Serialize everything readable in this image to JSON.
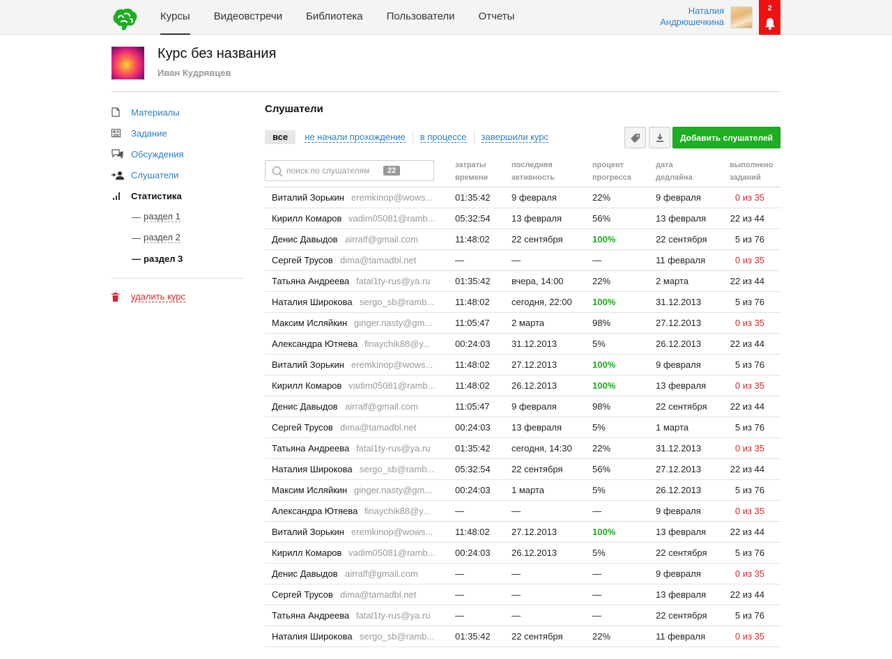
{
  "nav": {
    "items": [
      {
        "label": "Курсы",
        "active": true
      },
      {
        "label": "Видеовстречи",
        "active": false
      },
      {
        "label": "Библиотека",
        "active": false
      },
      {
        "label": "Пользователи",
        "active": false
      },
      {
        "label": "Отчеты",
        "active": false
      }
    ]
  },
  "user": {
    "first_name": "Наталия",
    "last_name": "Андрюшечкина",
    "notifications": "2"
  },
  "course": {
    "title": "Курс без названия",
    "author": "Иван Кудрявцев"
  },
  "sidebar": {
    "items": [
      {
        "label": "Материалы",
        "icon": "document-icon"
      },
      {
        "label": "Задание",
        "icon": "task-icon"
      },
      {
        "label": "Обсуждения",
        "icon": "discussion-icon"
      },
      {
        "label": "Слушатели",
        "icon": "listeners-icon"
      },
      {
        "label": "Статистика",
        "icon": "stats-icon",
        "active": true
      }
    ],
    "sub_items": [
      {
        "label": "раздел 1"
      },
      {
        "label": "раздел 2"
      },
      {
        "label": "раздел 3",
        "active": true
      }
    ],
    "delete_label": "удалить курс"
  },
  "main": {
    "title": "Слушатели",
    "filters": [
      {
        "label": "все",
        "active": true
      },
      {
        "label": "не начали прохождение"
      },
      {
        "label": "в процессе"
      },
      {
        "label": "завершили курс"
      }
    ],
    "add_button": "Добавить слушателей",
    "search": {
      "placeholder": "поиск по слушателям",
      "count": "22"
    },
    "columns": {
      "time": [
        "затраты",
        "времени"
      ],
      "activity": [
        "последняя",
        "активность"
      ],
      "progress": [
        "процент",
        "прогресса"
      ],
      "deadline": [
        "дата",
        "дедлайна"
      ],
      "done": [
        "выполнено",
        "заданий"
      ]
    }
  },
  "rows": [
    {
      "name": "Виталий Зорькин",
      "email": "eremkinop@wows...",
      "time": "01:35:42",
      "activity": "9 февраля",
      "progress": "22%",
      "deadline": "9 февраля",
      "done": "0 из 35"
    },
    {
      "name": "Кирилл Комаров",
      "email": "vadim05081@ramb...",
      "time": "05:32:54",
      "activity": "13 февраля",
      "progress": "56%",
      "deadline": "13 февраля",
      "done": "22 из 44"
    },
    {
      "name": "Денис Давыдов",
      "email": "airralf@gmail.com",
      "time": "11:48:02",
      "activity": "22 сентября",
      "progress": "100%",
      "deadline": "22 сентября",
      "done": "5 из 76"
    },
    {
      "name": "Сергей Трусов",
      "email": "dima@tamadbl.net",
      "time": "—",
      "activity": "—",
      "progress": "—",
      "deadline": "11 февраля",
      "done": "0 из 35"
    },
    {
      "name": "Татьяна Андреева",
      "email": "fatal1ty-rus@ya.ru",
      "time": "01:35:42",
      "activity": "вчера, 14:00",
      "progress": "22%",
      "deadline": "2 марта",
      "done": "22 из 44"
    },
    {
      "name": "Наталия Широкова",
      "email": "sergo_sb@ramb...",
      "time": "11:48:02",
      "activity": "сегодня, 22:00",
      "progress": "100%",
      "deadline": "31.12.2013",
      "done": "5 из 76"
    },
    {
      "name": "Максим Исляйкин",
      "email": "ginger.nasty@gm...",
      "time": "11:05:47",
      "activity": "2 марта",
      "progress": "98%",
      "deadline": "27.12.2013",
      "done": "0 из 35"
    },
    {
      "name": "Александра Ютяева",
      "email": "finaychik88@y...",
      "time": "00:24:03",
      "activity": "31.12.2013",
      "progress": "5%",
      "deadline": "26.12.2013",
      "done": "22 из 44"
    },
    {
      "name": "Виталий Зорькин",
      "email": "eremkinop@wows...",
      "time": "11:48:02",
      "activity": "27.12.2013",
      "progress": "100%",
      "deadline": "9 февраля",
      "done": "5 из 76"
    },
    {
      "name": "Кирилл Комаров",
      "email": "vadim05081@ramb...",
      "time": "11:48:02",
      "activity": "26.12.2013",
      "progress": "100%",
      "deadline": "13 февраля",
      "done": "0 из 35"
    },
    {
      "name": "Денис Давыдов",
      "email": "airralf@gmail.com",
      "time": "11:05:47",
      "activity": "9 февраля",
      "progress": "98%",
      "deadline": "22 сентября",
      "done": "22 из 44"
    },
    {
      "name": "Сергей Трусов",
      "email": "dima@tamadbl.net",
      "time": "00:24:03",
      "activity": "13 февраля",
      "progress": "5%",
      "deadline": "1 марта",
      "done": "5 из 76"
    },
    {
      "name": "Татьяна Андреева",
      "email": "fatal1ty-rus@ya.ru",
      "time": "01:35:42",
      "activity": "сегодня, 14:30",
      "progress": "22%",
      "deadline": "31.12.2013",
      "done": "0 из 35"
    },
    {
      "name": "Наталия Широкова",
      "email": "sergo_sb@ramb...",
      "time": "05:32:54",
      "activity": "22 сентября",
      "progress": "56%",
      "deadline": "27.12.2013",
      "done": "22 из 44"
    },
    {
      "name": "Максим Исляйкин",
      "email": "ginger.nasty@gm...",
      "time": "00:24:03",
      "activity": "1 марта",
      "progress": "5%",
      "deadline": "26.12.2013",
      "done": "5 из 76"
    },
    {
      "name": "Александра Ютяева",
      "email": "finaychik88@y...",
      "time": "—",
      "activity": "—",
      "progress": "—",
      "deadline": "9 февраля",
      "done": "0 из 35"
    },
    {
      "name": "Виталий Зорькин",
      "email": "eremkinop@wows...",
      "time": "11:48:02",
      "activity": "27.12.2013",
      "progress": "100%",
      "deadline": "13 февраля",
      "done": "22 из 44"
    },
    {
      "name": "Кирилл Комаров",
      "email": "vadim05081@ramb...",
      "time": "00:24:03",
      "activity": "26.12.2013",
      "progress": "5%",
      "deadline": "22 сентября",
      "done": "5 из 76"
    },
    {
      "name": "Денис Давыдов",
      "email": "airralf@gmail.com",
      "time": "—",
      "activity": "—",
      "progress": "—",
      "deadline": "9 февраля",
      "done": "0 из 35"
    },
    {
      "name": "Сергей Трусов",
      "email": "dima@tamadbl.net",
      "time": "—",
      "activity": "—",
      "progress": "—",
      "deadline": "13 февраля",
      "done": "22 из 44"
    },
    {
      "name": "Татьяна Андреева",
      "email": "fatal1ty-rus@ya.ru",
      "time": "—",
      "activity": "—",
      "progress": "—",
      "deadline": "22 сентября",
      "done": "5 из 76"
    },
    {
      "name": "Наталия Широкова",
      "email": "sergo_sb@ramb...",
      "time": "01:35:42",
      "activity": "22 сентября",
      "progress": "22%",
      "deadline": "11 февраля",
      "done": "0 из 35"
    }
  ],
  "colors": {
    "accent": "#2a7fc9",
    "add_button": "#1eae21",
    "alert": "#d6262a",
    "success": "#1ea81e",
    "notify": "#ee1111"
  }
}
